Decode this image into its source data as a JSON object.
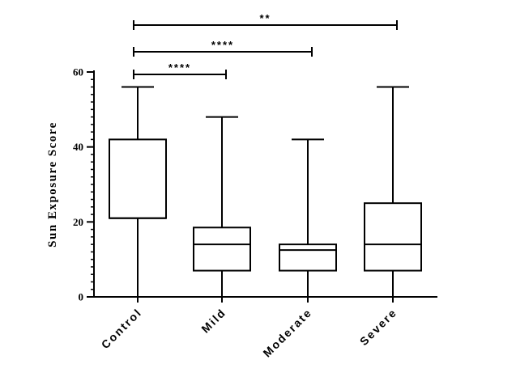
{
  "chart_data": {
    "type": "boxplot",
    "ylabel": "Sun Exposure Score",
    "ylim": [
      0,
      60
    ],
    "yticks": [
      0,
      20,
      40,
      60
    ],
    "yticks_labels": [
      "0",
      "20",
      "40",
      "60"
    ],
    "y_minor_step": 2,
    "grid": false,
    "categories": [
      "Control",
      "Mild",
      "Moderate",
      "Severe"
    ],
    "series": [
      {
        "category": "Control",
        "min": 0,
        "q1": 21,
        "median": 21,
        "q3": 42,
        "max": 56
      },
      {
        "category": "Mild",
        "min": 0,
        "q1": 7,
        "median": 14,
        "q3": 18.5,
        "max": 48
      },
      {
        "category": "Moderate",
        "min": 0,
        "q1": 7,
        "median": 12.5,
        "q3": 14,
        "max": 42
      },
      {
        "category": "Severe",
        "min": 0,
        "q1": 7,
        "median": 14,
        "q3": 25,
        "max": 56
      }
    ],
    "significance": [
      {
        "from": "Control",
        "to": "Mild",
        "label": "****"
      },
      {
        "from": "Control",
        "to": "Moderate",
        "label": "****"
      },
      {
        "from": "Control",
        "to": "Severe",
        "label": "**"
      }
    ]
  }
}
